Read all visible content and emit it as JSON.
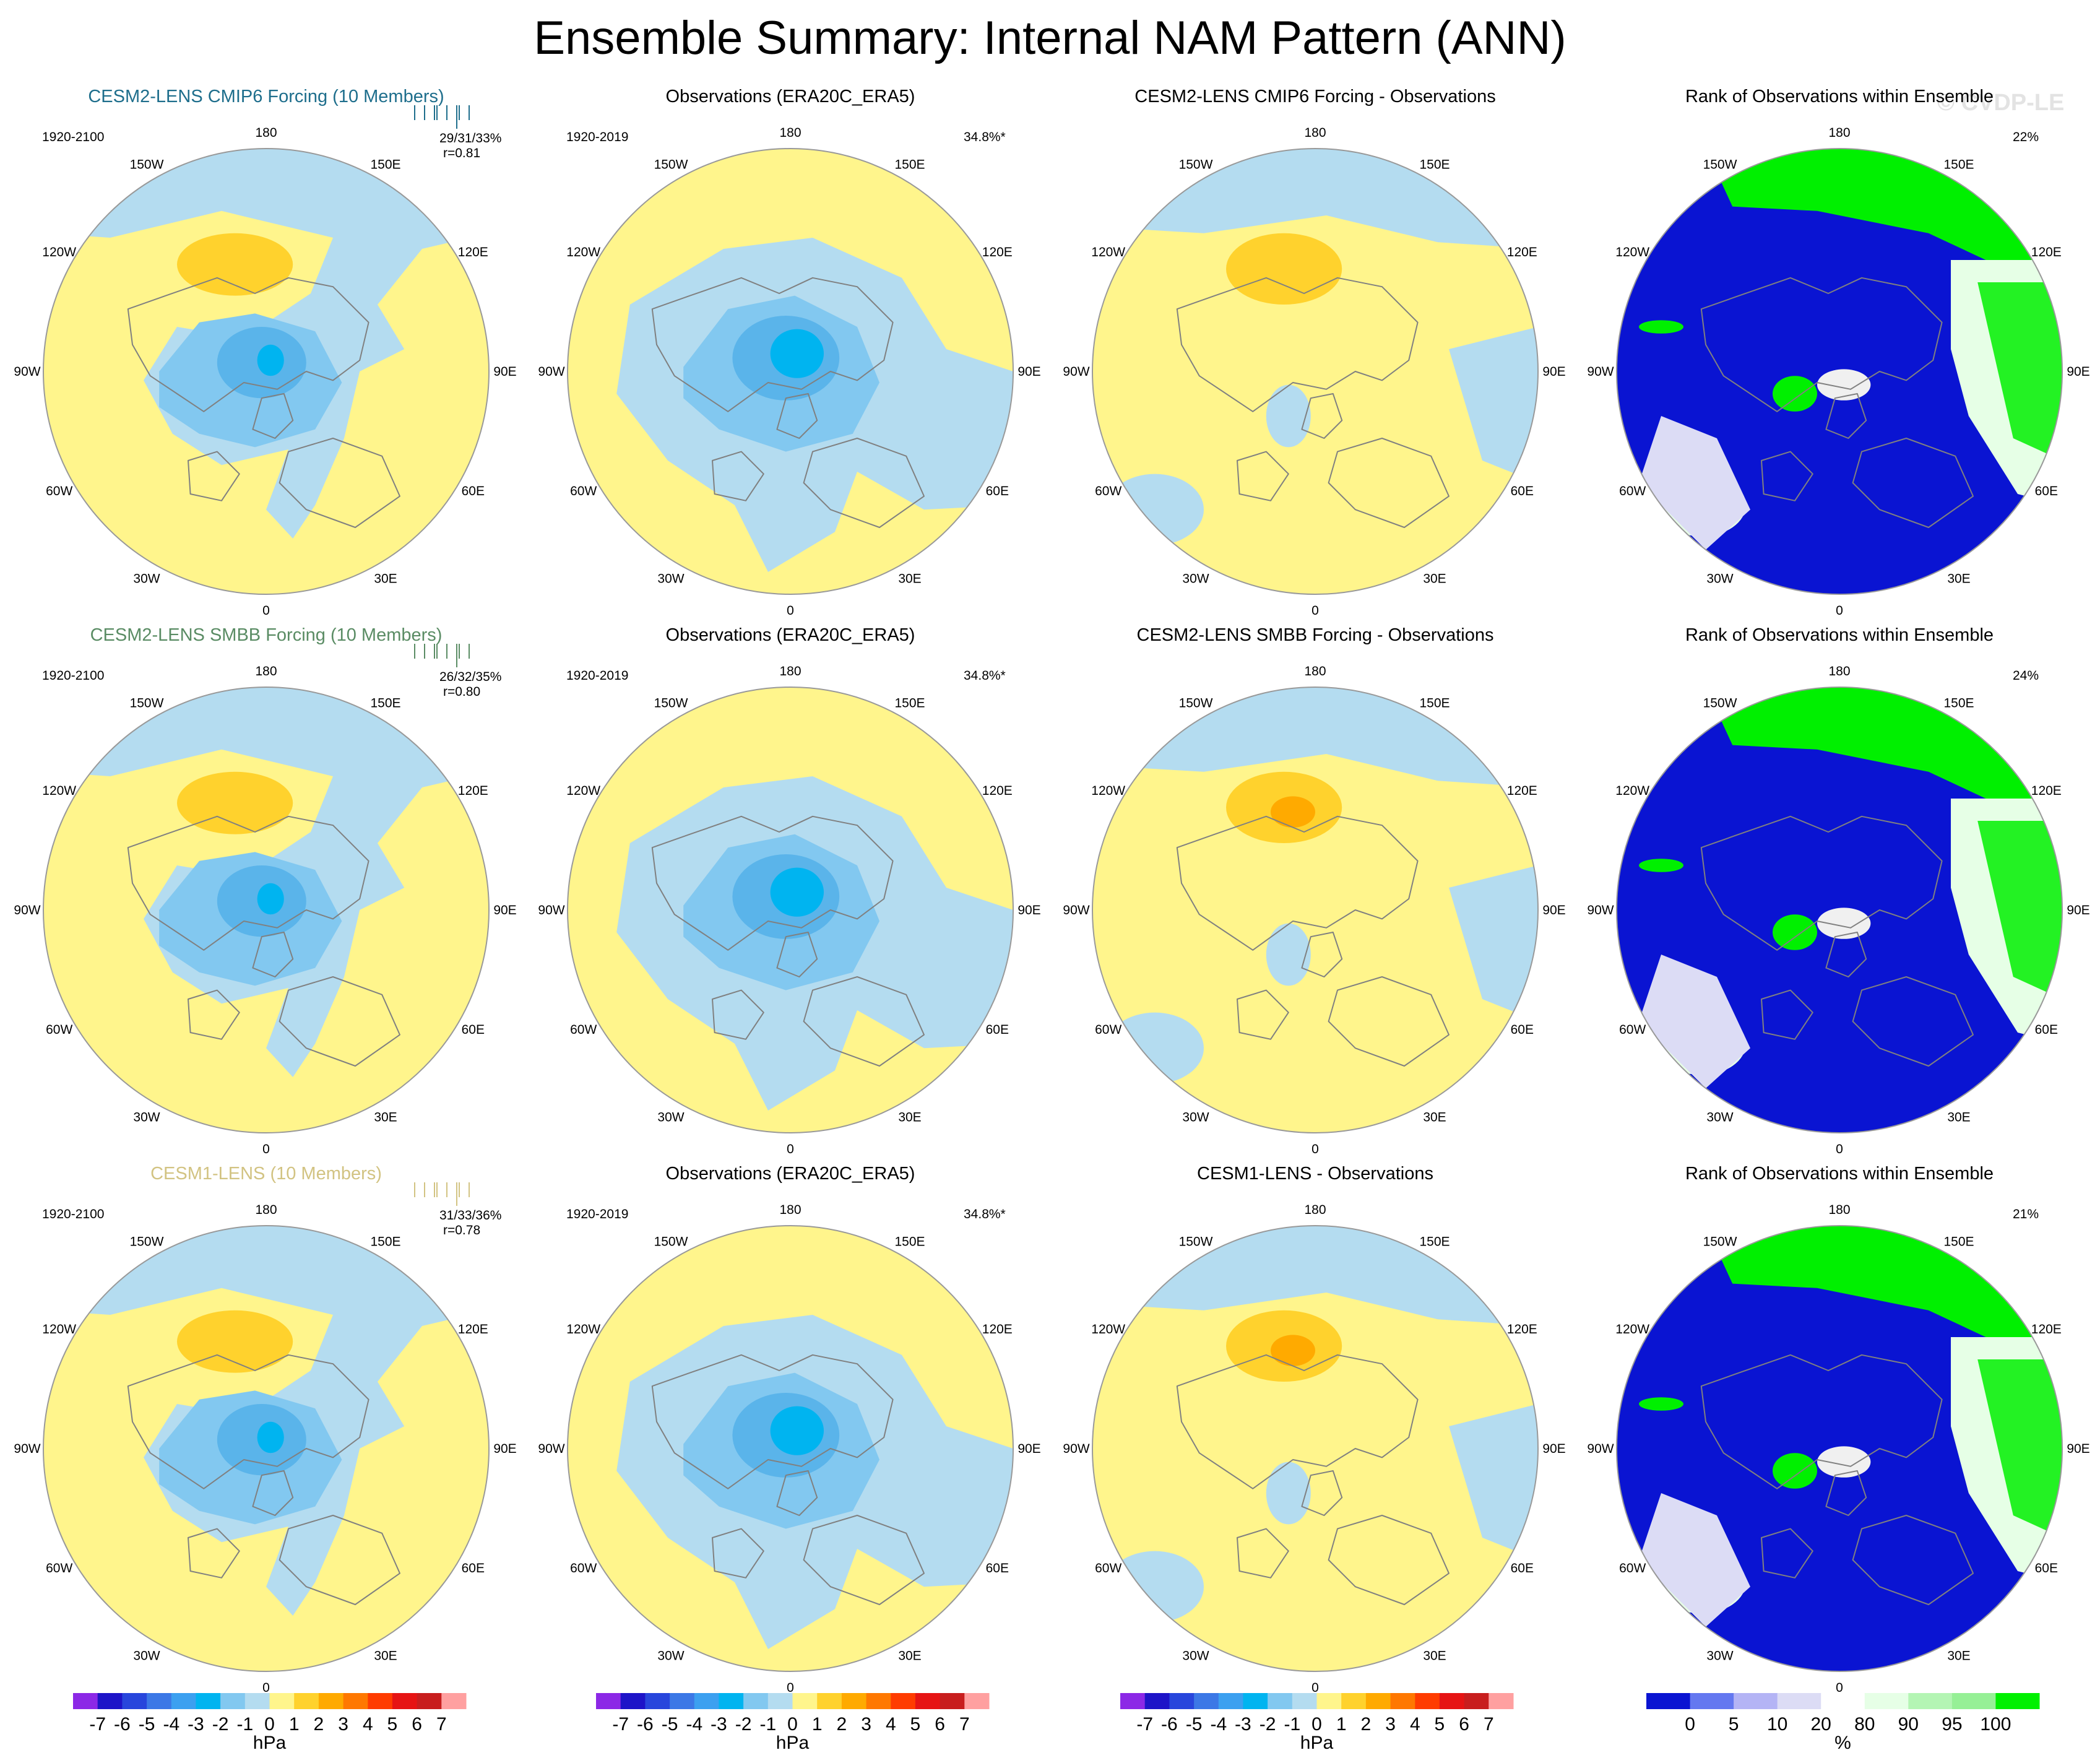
{
  "title": "Ensemble Summary: Internal NAM Pattern (ANN)",
  "watermark": "© CVDP-LE",
  "colors": {
    "yellow": "#fff58c",
    "ltblue": "#b4dcf0",
    "blue1": "#82c8f0",
    "blue2": "#5ab4ea",
    "blue3": "#00b4f0",
    "orange1": "#ffd22d",
    "orange2": "#ffaa00",
    "orange3": "#ff7800",
    "rank_blue": "#0a14d2",
    "rank_green": "#00f000",
    "rank_ltgreen": "#e6ffe6",
    "rank_lav": "#dcdcf5",
    "land": "#808080"
  },
  "lon_labels": [
    "180",
    "150E",
    "120E",
    "90E",
    "60E",
    "30E",
    "0",
    "30W",
    "60W",
    "90W",
    "120W",
    "150W"
  ],
  "colorbars": {
    "hPa": {
      "ticks": [
        "-7",
        "-6",
        "-5",
        "-4",
        "-3",
        "-2",
        "-1",
        "0",
        "1",
        "2",
        "3",
        "4",
        "5",
        "6",
        "7"
      ],
      "label": "hPa",
      "colors": [
        "#8c28e6",
        "#1e14c8",
        "#2846dc",
        "#3c78e6",
        "#3ca0f0",
        "#00b4f0",
        "#82c8f0",
        "#b4dcf0",
        "#fff58c",
        "#ffd22d",
        "#ffaa00",
        "#ff7800",
        "#ff3c00",
        "#e61414",
        "#c81e1e",
        "#ffa0a0"
      ]
    },
    "rank": {
      "ticks": [
        "0",
        "5",
        "10",
        "20",
        "80",
        "90",
        "95",
        "100"
      ],
      "label": "%",
      "colors": [
        "#0a14d2",
        "#6478f0",
        "#b4b4f5",
        "#dcdcf5",
        "#ffffff",
        "#e6ffe6",
        "#b4f5b4",
        "#96f096",
        "#00f000"
      ]
    }
  },
  "chart_data": [
    {
      "type": "heatmap",
      "title": "CESM2-LENS CMIP6 Forcing (10 Members)",
      "title_color": "#1e6e8c",
      "period": "1920-2100",
      "stats": "29/31/33%",
      "r": "r=0.81",
      "units": "hPa",
      "pattern": "ens",
      "low_max": -3,
      "high_max": 2
    },
    {
      "type": "heatmap",
      "title": "Observations (ERA20C_ERA5)",
      "period": "1920-2019",
      "pct": "34.8%*",
      "units": "hPa",
      "pattern": "obs",
      "low_max": -4,
      "high_max": 1
    },
    {
      "type": "heatmap",
      "title": "CESM2-LENS CMIP6 Forcing - Observations",
      "units": "hPa",
      "pattern": "diff",
      "high_max": 2
    },
    {
      "type": "heatmap",
      "title": "Rank of Observations within Ensemble",
      "pct": "22%",
      "units": "%",
      "pattern": "rank"
    },
    {
      "type": "heatmap",
      "title": "CESM2-LENS SMBB Forcing (10 Members)",
      "title_color": "#5a8c64",
      "period": "1920-2100",
      "stats": "26/32/35%",
      "r": "r=0.80",
      "units": "hPa",
      "pattern": "ens",
      "low_max": -3,
      "high_max": 2
    },
    {
      "type": "heatmap",
      "title": "Observations (ERA20C_ERA5)",
      "period": "1920-2019",
      "pct": "34.8%*",
      "units": "hPa",
      "pattern": "obs",
      "low_max": -4,
      "high_max": 1
    },
    {
      "type": "heatmap",
      "title": "CESM2-LENS SMBB Forcing - Observations",
      "units": "hPa",
      "pattern": "diff",
      "high_max": 3
    },
    {
      "type": "heatmap",
      "title": "Rank of Observations within Ensemble",
      "pct": "24%",
      "units": "%",
      "pattern": "rank"
    },
    {
      "type": "heatmap",
      "title": "CESM1-LENS (10 Members)",
      "title_color": "#d2c382",
      "period": "1920-2100",
      "stats": "31/33/36%",
      "r": "r=0.78",
      "units": "hPa",
      "pattern": "ens",
      "low_max": -3,
      "high_max": 2
    },
    {
      "type": "heatmap",
      "title": "Observations (ERA20C_ERA5)",
      "period": "1920-2019",
      "pct": "34.8%*",
      "units": "hPa",
      "pattern": "obs",
      "low_max": -4,
      "high_max": 1
    },
    {
      "type": "heatmap",
      "title": "CESM1-LENS - Observations",
      "units": "hPa",
      "pattern": "diff",
      "high_max": 3
    },
    {
      "type": "heatmap",
      "title": "Rank of Observations within Ensemble",
      "pct": "21%",
      "units": "%",
      "pattern": "rank"
    }
  ]
}
